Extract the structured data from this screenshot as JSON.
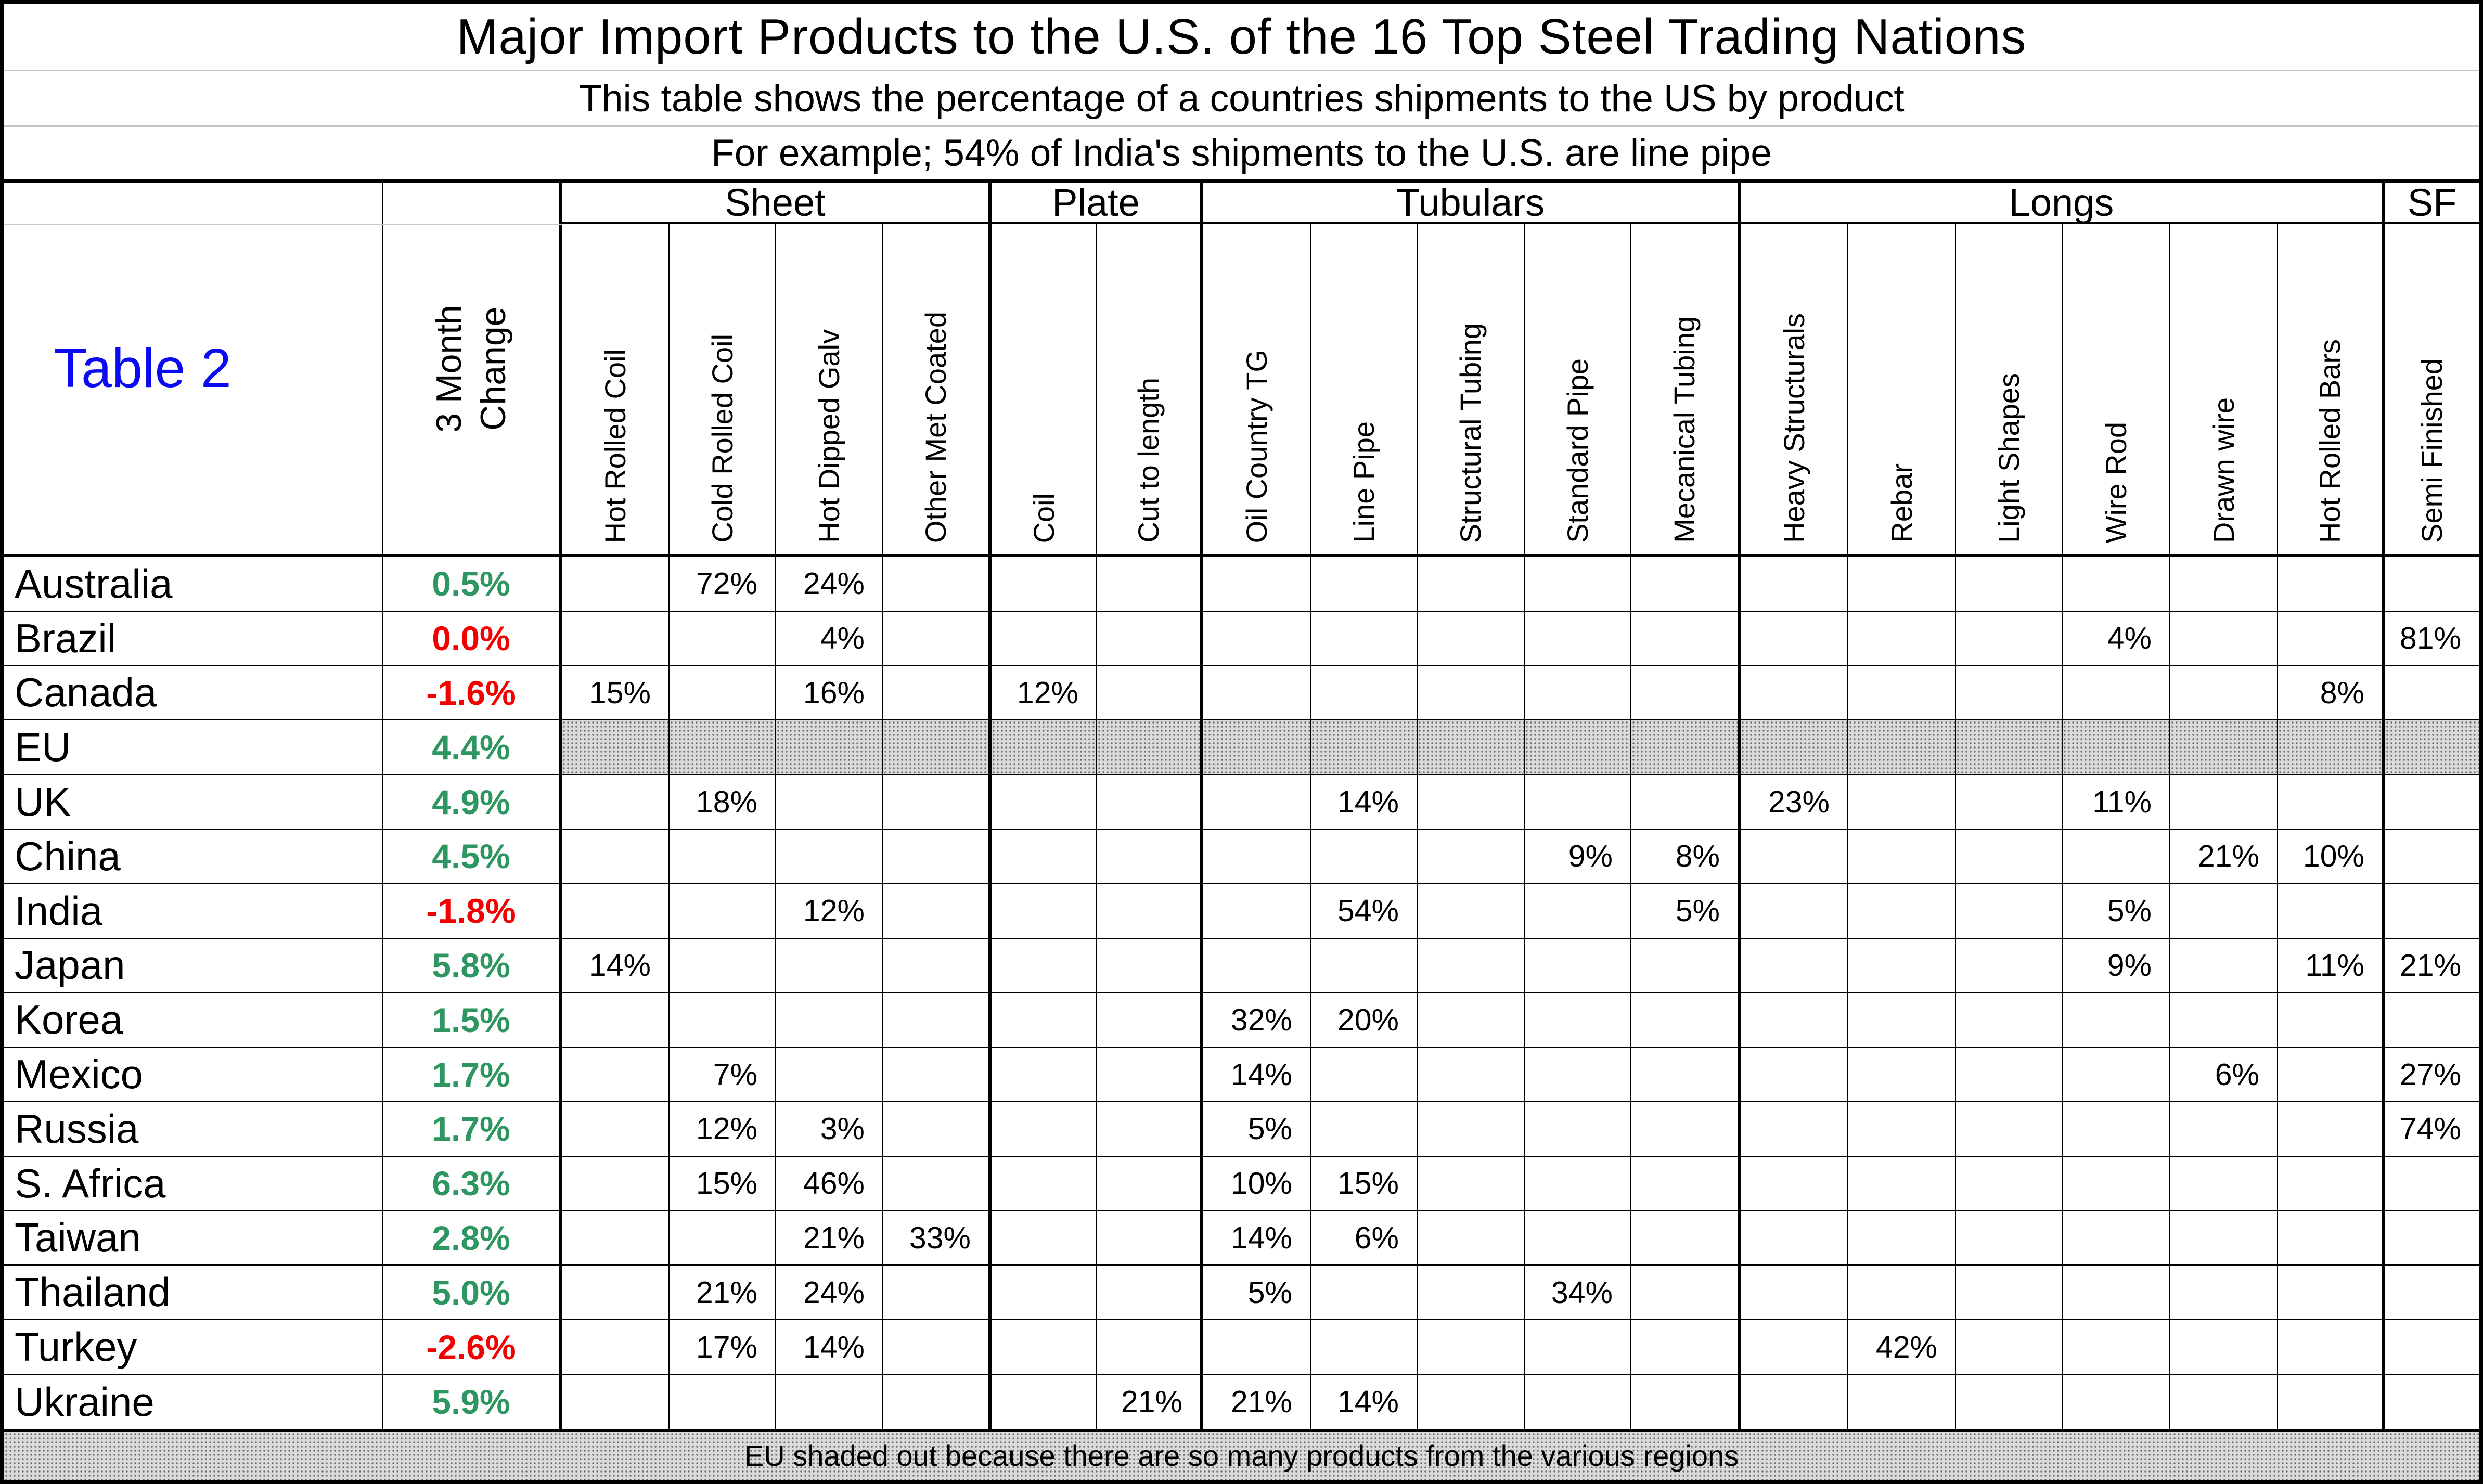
{
  "header": {
    "title": "Major Import Products to the U.S. of the 16 Top Steel Trading Nations",
    "subtitle1": "This table shows the percentage of a countries shipments to the US by product",
    "subtitle2": "For example; 54% of India's shipments to the U.S. are line pipe"
  },
  "table_label": "Table 2",
  "change_header": "3 Month\nChange",
  "groups": [
    {
      "label": "Sheet",
      "span": 4
    },
    {
      "label": "Plate",
      "span": 2
    },
    {
      "label": "Tubulars",
      "span": 5
    },
    {
      "label": "Longs",
      "span": 6
    },
    {
      "label": "SF",
      "span": 1
    }
  ],
  "columns": [
    "Hot Rolled Coil",
    "Cold Rolled Coil",
    "Hot Dipped Galv",
    "Other Met Coated",
    "Coil",
    "Cut to length",
    "Oil Country TG",
    "Line Pipe",
    "Structural Tubing",
    "Standard Pipe",
    "Mecanical Tubing",
    "Heavy Structurals",
    "Rebar",
    "Light Shapes",
    "Wire Rod",
    "Drawn wire",
    "Hot Rolled Bars",
    "Semi Finished"
  ],
  "rows": [
    {
      "country": "Australia",
      "change": "0.5%",
      "change_color": "green",
      "shaded": false,
      "values": [
        "",
        "72%",
        "24%",
        "",
        "",
        "",
        "",
        "",
        "",
        "",
        "",
        "",
        "",
        "",
        "",
        "",
        "",
        ""
      ]
    },
    {
      "country": "Brazil",
      "change": "0.0%",
      "change_color": "red",
      "shaded": false,
      "values": [
        "",
        "",
        "4%",
        "",
        "",
        "",
        "",
        "",
        "",
        "",
        "",
        "",
        "",
        "",
        "4%",
        "",
        "",
        "81%"
      ]
    },
    {
      "country": "Canada",
      "change": "-1.6%",
      "change_color": "red",
      "shaded": false,
      "values": [
        "15%",
        "",
        "16%",
        "",
        "12%",
        "",
        "",
        "",
        "",
        "",
        "",
        "",
        "",
        "",
        "",
        "",
        "8%",
        ""
      ]
    },
    {
      "country": "EU",
      "change": "4.4%",
      "change_color": "green",
      "shaded": true,
      "values": [
        "",
        "",
        "",
        "",
        "",
        "",
        "",
        "",
        "",
        "",
        "",
        "",
        "",
        "",
        "",
        "",
        "",
        ""
      ]
    },
    {
      "country": "UK",
      "change": "4.9%",
      "change_color": "green",
      "shaded": false,
      "values": [
        "",
        "18%",
        "",
        "",
        "",
        "",
        "",
        "14%",
        "",
        "",
        "",
        "23%",
        "",
        "",
        "11%",
        "",
        "",
        ""
      ]
    },
    {
      "country": "China",
      "change": "4.5%",
      "change_color": "green",
      "shaded": false,
      "values": [
        "",
        "",
        "",
        "",
        "",
        "",
        "",
        "",
        "",
        "9%",
        "8%",
        "",
        "",
        "",
        "",
        "21%",
        "10%",
        ""
      ]
    },
    {
      "country": "India",
      "change": "-1.8%",
      "change_color": "red",
      "shaded": false,
      "values": [
        "",
        "",
        "12%",
        "",
        "",
        "",
        "",
        "54%",
        "",
        "",
        "5%",
        "",
        "",
        "",
        "5%",
        "",
        "",
        ""
      ]
    },
    {
      "country": "Japan",
      "change": "5.8%",
      "change_color": "green",
      "shaded": false,
      "values": [
        "14%",
        "",
        "",
        "",
        "",
        "",
        "",
        "",
        "",
        "",
        "",
        "",
        "",
        "",
        "9%",
        "",
        "11%",
        "21%"
      ]
    },
    {
      "country": "Korea",
      "change": "1.5%",
      "change_color": "green",
      "shaded": false,
      "values": [
        "",
        "",
        "",
        "",
        "",
        "",
        "32%",
        "20%",
        "",
        "",
        "",
        "",
        "",
        "",
        "",
        "",
        "",
        ""
      ]
    },
    {
      "country": "Mexico",
      "change": "1.7%",
      "change_color": "green",
      "shaded": false,
      "values": [
        "",
        "7%",
        "",
        "",
        "",
        "",
        "14%",
        "",
        "",
        "",
        "",
        "",
        "",
        "",
        "",
        "6%",
        "",
        "27%"
      ]
    },
    {
      "country": "Russia",
      "change": "1.7%",
      "change_color": "green",
      "shaded": false,
      "values": [
        "",
        "12%",
        "3%",
        "",
        "",
        "",
        "5%",
        "",
        "",
        "",
        "",
        "",
        "",
        "",
        "",
        "",
        "",
        "74%"
      ]
    },
    {
      "country": "S. Africa",
      "change": "6.3%",
      "change_color": "green",
      "shaded": false,
      "values": [
        "",
        "15%",
        "46%",
        "",
        "",
        "",
        "10%",
        "15%",
        "",
        "",
        "",
        "",
        "",
        "",
        "",
        "",
        "",
        ""
      ]
    },
    {
      "country": "Taiwan",
      "change": "2.8%",
      "change_color": "green",
      "shaded": false,
      "values": [
        "",
        "",
        "21%",
        "33%",
        "",
        "",
        "14%",
        "6%",
        "",
        "",
        "",
        "",
        "",
        "",
        "",
        "",
        "",
        ""
      ]
    },
    {
      "country": "Thailand",
      "change": "5.0%",
      "change_color": "green",
      "shaded": false,
      "values": [
        "",
        "21%",
        "24%",
        "",
        "",
        "",
        "5%",
        "",
        "",
        "34%",
        "",
        "",
        "",
        "",
        "",
        "",
        "",
        ""
      ]
    },
    {
      "country": "Turkey",
      "change": "-2.6%",
      "change_color": "red",
      "shaded": false,
      "values": [
        "",
        "17%",
        "14%",
        "",
        "",
        "",
        "",
        "",
        "",
        "",
        "",
        "",
        "42%",
        "",
        "",
        "",
        "",
        ""
      ]
    },
    {
      "country": "Ukraine",
      "change": "5.9%",
      "change_color": "green",
      "shaded": false,
      "values": [
        "",
        "",
        "",
        "",
        "",
        "21%",
        "21%",
        "14%",
        "",
        "",
        "",
        "",
        "",
        "",
        "",
        "",
        "",
        ""
      ]
    }
  ],
  "footnote": {
    "text": "EU shaded out because there are so many products from the various regions"
  },
  "colors": {
    "positive_green": "#2E9661",
    "negative_red": "#F40000",
    "table_label_blue": "#0A0AF5"
  }
}
